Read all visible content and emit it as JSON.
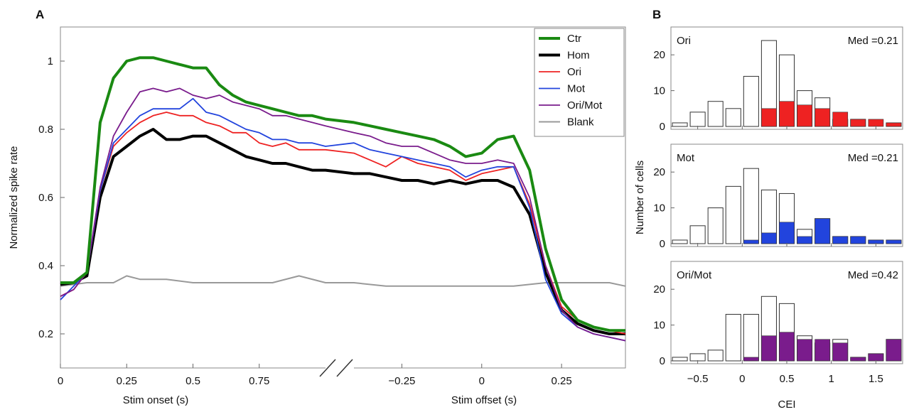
{
  "panel_labels": {
    "a": "A",
    "b": "B"
  },
  "colors": {
    "ctr": "#1a8a12",
    "hom": "#000000",
    "ori": "#ee2222",
    "mot": "#2244dd",
    "orimot": "#7a1c8c",
    "blank": "#999999",
    "frame": "#888888"
  },
  "chart_data": [
    {
      "type": "line",
      "ylabel": "Normalized spike rate",
      "xlabel_onset": "Stim onset (s)",
      "xlabel_offset": "Stim offset (s)",
      "ylim": [
        0.1,
        1.1
      ],
      "yticks": [
        "0.2",
        "0.4",
        "0.6",
        "0.8",
        "1"
      ],
      "xticks_onset": [
        "0",
        "0.25",
        "0.5",
        "0.75"
      ],
      "xticks_offset": [
        "−0.25",
        "0",
        "0.25"
      ],
      "xlim_onset": [
        0,
        1.0
      ],
      "xlim_offset": [
        -0.4,
        0.45
      ],
      "legend_placement": "top-right",
      "series": [
        {
          "name": "Ctr",
          "key": "ctr",
          "onset_x": [
            0,
            0.05,
            0.1,
            0.15,
            0.2,
            0.25,
            0.3,
            0.35,
            0.4,
            0.45,
            0.5,
            0.55,
            0.6,
            0.65,
            0.7,
            0.75,
            0.8,
            0.85,
            0.9,
            0.95,
            1.0
          ],
          "onset_y": [
            0.35,
            0.35,
            0.38,
            0.82,
            0.95,
            1.0,
            1.01,
            1.01,
            1.0,
            0.99,
            0.98,
            0.98,
            0.93,
            0.9,
            0.88,
            0.87,
            0.86,
            0.85,
            0.84,
            0.84,
            0.83
          ],
          "offset_x": [
            -0.4,
            -0.35,
            -0.3,
            -0.25,
            -0.2,
            -0.15,
            -0.1,
            -0.05,
            0,
            0.05,
            0.1,
            0.15,
            0.2,
            0.25,
            0.3,
            0.35,
            0.4,
            0.45
          ],
          "offset_y": [
            0.82,
            0.81,
            0.8,
            0.79,
            0.78,
            0.77,
            0.75,
            0.72,
            0.73,
            0.77,
            0.78,
            0.68,
            0.45,
            0.3,
            0.24,
            0.22,
            0.21,
            0.21
          ]
        },
        {
          "name": "Hom",
          "key": "hom",
          "onset_x": [
            0,
            0.05,
            0.1,
            0.15,
            0.2,
            0.25,
            0.3,
            0.35,
            0.4,
            0.45,
            0.5,
            0.55,
            0.6,
            0.65,
            0.7,
            0.75,
            0.8,
            0.85,
            0.9,
            0.95,
            1.0
          ],
          "onset_y": [
            0.345,
            0.35,
            0.37,
            0.6,
            0.72,
            0.75,
            0.78,
            0.8,
            0.77,
            0.77,
            0.78,
            0.78,
            0.76,
            0.74,
            0.72,
            0.71,
            0.7,
            0.7,
            0.69,
            0.68,
            0.68
          ],
          "offset_x": [
            -0.4,
            -0.35,
            -0.3,
            -0.25,
            -0.2,
            -0.15,
            -0.1,
            -0.05,
            0,
            0.05,
            0.1,
            0.15,
            0.2,
            0.25,
            0.3,
            0.35,
            0.4,
            0.45
          ],
          "offset_y": [
            0.67,
            0.67,
            0.66,
            0.65,
            0.65,
            0.64,
            0.65,
            0.64,
            0.65,
            0.65,
            0.63,
            0.55,
            0.38,
            0.27,
            0.23,
            0.21,
            0.2,
            0.2
          ]
        },
        {
          "name": "Ori",
          "key": "ori",
          "onset_x": [
            0,
            0.05,
            0.1,
            0.15,
            0.2,
            0.25,
            0.3,
            0.35,
            0.4,
            0.45,
            0.5,
            0.55,
            0.6,
            0.65,
            0.7,
            0.75,
            0.8,
            0.85,
            0.9,
            0.95,
            1.0
          ],
          "onset_y": [
            0.31,
            0.33,
            0.38,
            0.62,
            0.75,
            0.79,
            0.82,
            0.84,
            0.85,
            0.84,
            0.84,
            0.82,
            0.81,
            0.79,
            0.79,
            0.76,
            0.75,
            0.76,
            0.74,
            0.74,
            0.74
          ],
          "offset_x": [
            -0.4,
            -0.35,
            -0.3,
            -0.25,
            -0.2,
            -0.15,
            -0.1,
            -0.05,
            0,
            0.05,
            0.1,
            0.15,
            0.2,
            0.25,
            0.3,
            0.35,
            0.4,
            0.45
          ],
          "offset_y": [
            0.73,
            0.71,
            0.69,
            0.72,
            0.7,
            0.69,
            0.68,
            0.65,
            0.67,
            0.68,
            0.69,
            0.58,
            0.4,
            0.28,
            0.24,
            0.22,
            0.21,
            0.2
          ]
        },
        {
          "name": "Mot",
          "key": "mot",
          "onset_x": [
            0,
            0.05,
            0.1,
            0.15,
            0.2,
            0.25,
            0.3,
            0.35,
            0.4,
            0.45,
            0.5,
            0.55,
            0.6,
            0.65,
            0.7,
            0.75,
            0.8,
            0.85,
            0.9,
            0.95,
            1.0
          ],
          "onset_y": [
            0.3,
            0.34,
            0.38,
            0.62,
            0.76,
            0.8,
            0.84,
            0.86,
            0.86,
            0.86,
            0.89,
            0.85,
            0.84,
            0.82,
            0.8,
            0.79,
            0.77,
            0.77,
            0.76,
            0.76,
            0.75
          ],
          "offset_x": [
            -0.4,
            -0.35,
            -0.3,
            -0.25,
            -0.2,
            -0.15,
            -0.1,
            -0.05,
            0,
            0.05,
            0.1,
            0.15,
            0.2,
            0.25,
            0.3,
            0.35,
            0.4,
            0.45
          ],
          "offset_y": [
            0.76,
            0.74,
            0.73,
            0.72,
            0.71,
            0.7,
            0.69,
            0.66,
            0.68,
            0.69,
            0.69,
            0.57,
            0.36,
            0.26,
            0.22,
            0.2,
            0.19,
            0.18
          ]
        },
        {
          "name": "Ori/Mot",
          "key": "orimot",
          "onset_x": [
            0,
            0.05,
            0.1,
            0.15,
            0.2,
            0.25,
            0.3,
            0.35,
            0.4,
            0.45,
            0.5,
            0.55,
            0.6,
            0.65,
            0.7,
            0.75,
            0.8,
            0.85,
            0.9,
            0.95,
            1.0
          ],
          "onset_y": [
            0.31,
            0.33,
            0.38,
            0.63,
            0.78,
            0.85,
            0.91,
            0.92,
            0.91,
            0.92,
            0.9,
            0.89,
            0.9,
            0.88,
            0.87,
            0.86,
            0.84,
            0.84,
            0.83,
            0.82,
            0.81
          ],
          "offset_x": [
            -0.4,
            -0.35,
            -0.3,
            -0.25,
            -0.2,
            -0.15,
            -0.1,
            -0.05,
            0,
            0.05,
            0.1,
            0.15,
            0.2,
            0.25,
            0.3,
            0.35,
            0.4,
            0.45
          ],
          "offset_y": [
            0.79,
            0.78,
            0.76,
            0.75,
            0.75,
            0.73,
            0.71,
            0.7,
            0.7,
            0.71,
            0.7,
            0.6,
            0.4,
            0.27,
            0.22,
            0.2,
            0.19,
            0.18
          ]
        },
        {
          "name": "Blank",
          "key": "blank",
          "onset_x": [
            0,
            0.1,
            0.2,
            0.25,
            0.3,
            0.4,
            0.5,
            0.6,
            0.7,
            0.8,
            0.9,
            1.0
          ],
          "onset_y": [
            0.34,
            0.35,
            0.35,
            0.37,
            0.36,
            0.36,
            0.35,
            0.35,
            0.35,
            0.35,
            0.37,
            0.35
          ],
          "offset_x": [
            -0.4,
            -0.3,
            -0.2,
            -0.1,
            0,
            0.1,
            0.2,
            0.3,
            0.4,
            0.45
          ],
          "offset_y": [
            0.35,
            0.34,
            0.34,
            0.34,
            0.34,
            0.34,
            0.35,
            0.35,
            0.35,
            0.34
          ]
        }
      ]
    },
    {
      "type": "bar",
      "ylabel": "Number of cells",
      "xlabel": "CEI",
      "xticks": [
        "−0.5",
        "0",
        "0.5",
        "1",
        "1.5"
      ],
      "xtick_values": [
        -0.5,
        0,
        0.5,
        1,
        1.5
      ],
      "xlim": [
        -0.8,
        1.8
      ],
      "ylim": [
        0,
        25
      ],
      "yticks": [
        "0",
        "10",
        "20"
      ],
      "bin_width": 0.2,
      "panels": [
        {
          "label": "Ori",
          "median": "Med =0.21",
          "color_key": "ori",
          "bin_centers": [
            -0.7,
            -0.5,
            -0.3,
            -0.1,
            0.1,
            0.3,
            0.5,
            0.7,
            0.9,
            1.1,
            1.3,
            1.5,
            1.7
          ],
          "total": [
            1,
            4,
            7,
            5,
            14,
            24,
            20,
            10,
            8,
            2,
            2,
            0,
            1
          ],
          "colored": [
            0,
            0,
            0,
            0,
            0,
            5,
            7,
            6,
            5,
            4,
            2,
            2,
            1
          ]
        },
        {
          "label": "Mot",
          "median": "Med =0.21",
          "color_key": "mot",
          "bin_centers": [
            -0.7,
            -0.5,
            -0.3,
            -0.1,
            0.1,
            0.3,
            0.5,
            0.7,
            0.9,
            1.1,
            1.3,
            1.5,
            1.7
          ],
          "total": [
            1,
            5,
            10,
            16,
            21,
            15,
            14,
            4,
            7,
            2,
            2,
            1,
            1
          ],
          "colored": [
            0,
            0,
            0,
            0,
            1,
            3,
            6,
            2,
            7,
            2,
            2,
            1,
            1
          ]
        },
        {
          "label": "Ori/Mot",
          "median": "Med =0.42",
          "color_key": "orimot",
          "bin_centers": [
            -0.7,
            -0.5,
            -0.3,
            -0.1,
            0.1,
            0.3,
            0.5,
            0.7,
            0.9,
            1.1,
            1.3,
            1.5,
            1.7
          ],
          "total": [
            1,
            2,
            3,
            13,
            13,
            18,
            16,
            7,
            5,
            6,
            1,
            2,
            6
          ],
          "colored": [
            0,
            0,
            0,
            0,
            1,
            7,
            8,
            6,
            6,
            5,
            1,
            2,
            6
          ]
        }
      ]
    }
  ]
}
